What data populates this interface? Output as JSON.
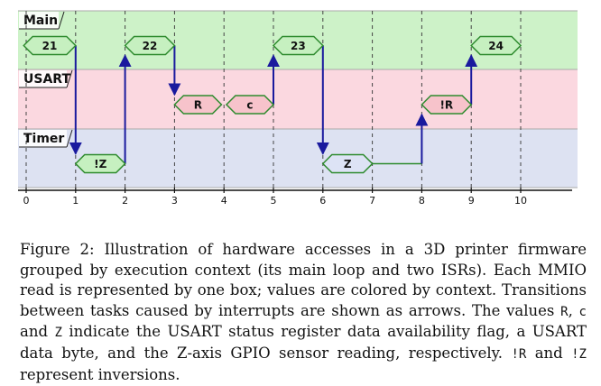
{
  "diagram": {
    "lanes": [
      {
        "id": "main",
        "label": "Main",
        "fill": "#cdf2c8"
      },
      {
        "id": "usart",
        "label": "USART",
        "fill": "#fbd8e0"
      },
      {
        "id": "timer",
        "label": "Timer",
        "fill": "#dde2f2"
      }
    ],
    "axis": {
      "min": 0,
      "max": 10,
      "ticks": [
        0,
        1,
        2,
        3,
        4,
        5,
        6,
        7,
        8,
        9,
        10
      ]
    },
    "boxes": [
      {
        "label": "21",
        "lane": "main",
        "start": -0.05,
        "end": 1.0,
        "fill": "#c6f0c0",
        "stroke": "#2e8b2e"
      },
      {
        "label": "!Z",
        "lane": "timer",
        "start": 1.0,
        "end": 2.0,
        "fill": "#c6f0c0",
        "stroke": "#2e8b2e"
      },
      {
        "label": "22",
        "lane": "main",
        "start": 2.0,
        "end": 3.0,
        "fill": "#c6f0c0",
        "stroke": "#2e8b2e"
      },
      {
        "label": "R",
        "lane": "usart",
        "start": 3.0,
        "end": 3.95,
        "fill": "#f7c3cb",
        "stroke": "#2e8b2e"
      },
      {
        "label": "c",
        "lane": "usart",
        "start": 4.05,
        "end": 5.0,
        "fill": "#f7c3cb",
        "stroke": "#2e8b2e"
      },
      {
        "label": "23",
        "lane": "main",
        "start": 5.0,
        "end": 6.0,
        "fill": "#c6f0c0",
        "stroke": "#2e8b2e"
      },
      {
        "label": "Z",
        "lane": "timer",
        "start": 6.0,
        "end": 7.0,
        "fill": "#dde3f5",
        "stroke": "#2e8b2e"
      },
      {
        "label": "!R",
        "lane": "usart",
        "start": 8.0,
        "end": 9.0,
        "fill": "#f7c3cb",
        "stroke": "#2e8b2e"
      },
      {
        "label": "24",
        "lane": "main",
        "start": 9.0,
        "end": 10.0,
        "fill": "#c6f0c0",
        "stroke": "#2e8b2e"
      }
    ],
    "transitions": [
      {
        "at": 1,
        "from": "main",
        "to": "timer"
      },
      {
        "at": 2,
        "from": "timer",
        "to": "main"
      },
      {
        "at": 3,
        "from": "main",
        "to": "usart"
      },
      {
        "at": 5,
        "from": "usart",
        "to": "main"
      },
      {
        "at": 6,
        "from": "main",
        "to": "timer"
      },
      {
        "at": 8,
        "from": "timer",
        "to": "usart"
      },
      {
        "at": 9,
        "from": "usart",
        "to": "main"
      }
    ],
    "flat_lines": [
      {
        "lane": "timer",
        "from": 7,
        "to": 8
      }
    ],
    "arrow_color": "#1a1a9e",
    "line_color": "#2e8b2e"
  },
  "caption": {
    "p1": "Figure 2: Illustration of hardware accesses in a 3D printer firmware grouped by execution context (its main loop and two ISRs). Each MMIO read is represented by one box; values are colored by context. Transitions between tasks caused by interrupts are shown as arrows. The values ",
    "c1": "R",
    "p2": ", ",
    "c2": "c",
    "p3": " and ",
    "c3": "Z",
    "p4": " indicate the USART status register data availability flag, a USART data byte, and the Z-axis GPIO sensor reading, respectively. ",
    "c4": "!R",
    "p5": " and ",
    "c5": "!Z",
    "p6": " represent inversions."
  }
}
